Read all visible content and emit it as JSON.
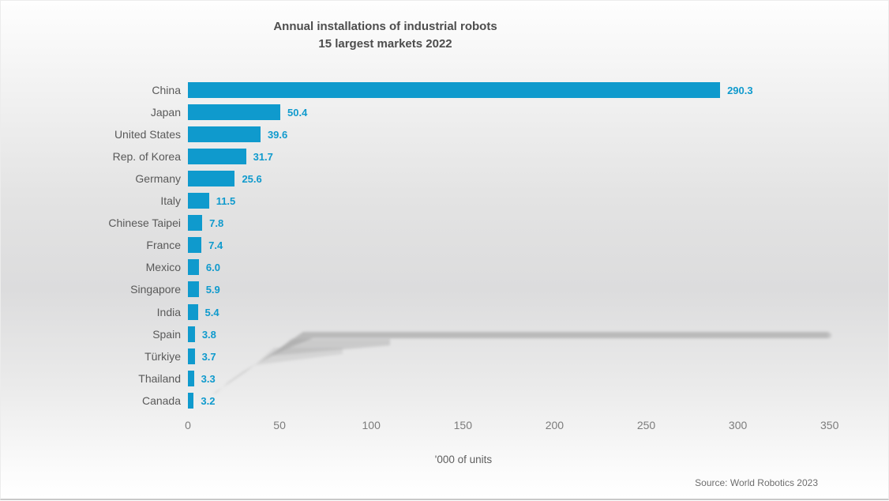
{
  "title": {
    "line1": "Annual installations of industrial robots",
    "line2": "15 largest markets 2022"
  },
  "source": "Source: World Robotics 2023",
  "chart_data": {
    "type": "bar",
    "orientation": "horizontal",
    "title": "Annual installations of industrial robots — 15 largest markets 2022",
    "categories": [
      "China",
      "Japan",
      "United States",
      "Rep. of Korea",
      "Germany",
      "Italy",
      "Chinese Taipei",
      "France",
      "Mexico",
      "Singapore",
      "India",
      "Spain",
      "Türkiye",
      "Thailand",
      "Canada"
    ],
    "values": [
      290.3,
      50.4,
      39.6,
      31.7,
      25.6,
      11.5,
      7.8,
      7.4,
      6.0,
      5.9,
      5.4,
      3.8,
      3.7,
      3.3,
      3.2
    ],
    "value_labels": [
      "290.3",
      "50.4",
      "39.6",
      "31.7",
      "25.6",
      "11.5",
      "7.8",
      "7.4",
      "6.0",
      "5.9",
      "5.4",
      "3.8",
      "3.7",
      "3.3",
      "3.2"
    ],
    "x_ticks": [
      "0",
      "50",
      "100",
      "150",
      "200",
      "250",
      "300",
      "350"
    ],
    "xlim": [
      0,
      350
    ],
    "xlabel": "'000 of units",
    "ylabel": "",
    "grid": false,
    "legend": null,
    "colors": {
      "bar": "#0F9ACD",
      "value_label": "#0F9ACD",
      "category_label": "#595959",
      "tick_label": "#7C7C7C",
      "title": "#4D4D4D",
      "axis_label": "#5E5E5E",
      "source": "#6E6E6E"
    }
  }
}
